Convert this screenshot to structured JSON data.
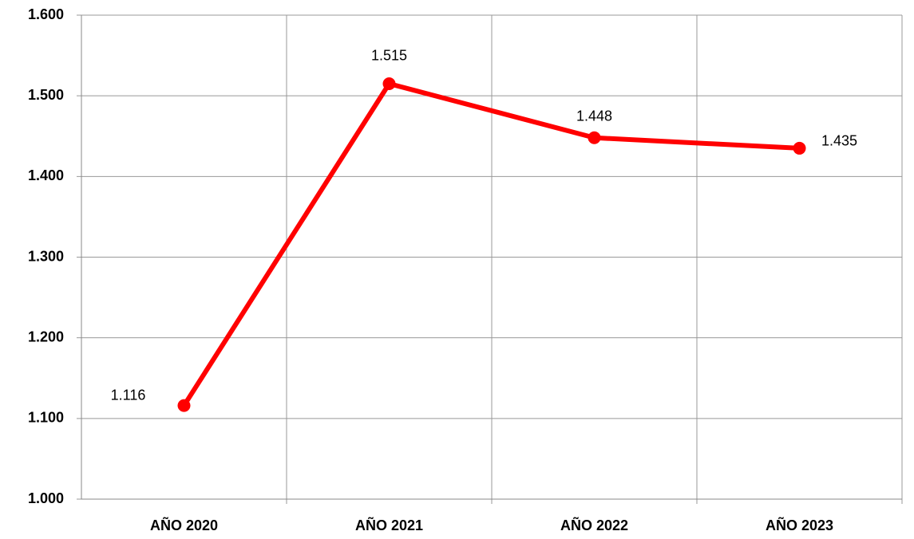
{
  "chart_data": {
    "type": "line",
    "categories": [
      "AÑO 2020",
      "AÑO 2021",
      "AÑO 2022",
      "AÑO 2023"
    ],
    "values": [
      1116,
      1515,
      1448,
      1435
    ],
    "value_labels": [
      "1.116",
      "1.515",
      "1.448",
      "1.435"
    ],
    "color": "#ff0000",
    "ylim": [
      1000,
      1600
    ],
    "yticks": [
      {
        "value": 1000,
        "label": "1.000"
      },
      {
        "value": 1100,
        "label": "1.100"
      },
      {
        "value": 1200,
        "label": "1.200"
      },
      {
        "value": 1300,
        "label": "1.300"
      },
      {
        "value": 1400,
        "label": "1.400"
      },
      {
        "value": 1500,
        "label": "1.500"
      },
      {
        "value": 1600,
        "label": "1.600"
      }
    ],
    "grid": true
  }
}
